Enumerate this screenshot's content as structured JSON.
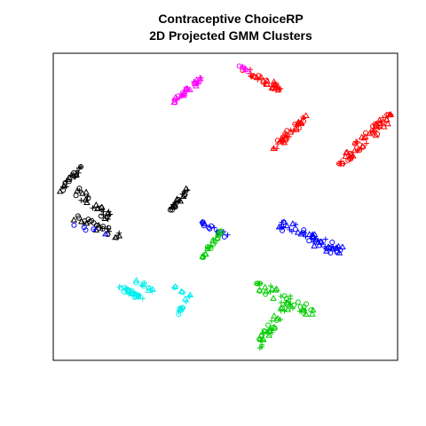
{
  "chart_data": {
    "type": "scatter",
    "title_line1": "Contraceptive ChoiceRP",
    "title_line2": "2D Projected GMM Clusters",
    "xlabel": "",
    "ylabel": "",
    "xlim": [
      0,
      100
    ],
    "ylim": [
      0,
      100
    ],
    "axes_visible": false,
    "grid": false,
    "marker_shapes": [
      "circle",
      "triangle",
      "plus"
    ],
    "series": [
      {
        "color": "#ff0000",
        "clusters": [
          {
            "x": [
              55,
              66
            ],
            "y": [
              88,
              95
            ],
            "n": 32
          },
          {
            "x": [
              64,
              74
            ],
            "y": [
              69,
              80
            ],
            "n": 40
          },
          {
            "x": [
              83,
              98
            ],
            "y": [
              64,
              80
            ],
            "n": 70
          }
        ]
      },
      {
        "color": "#ff00ff",
        "clusters": [
          {
            "x": [
              35,
              43
            ],
            "y": [
              84,
              92
            ],
            "n": 30
          },
          {
            "x": [
              54,
              57
            ],
            "y": [
              94,
              96
            ],
            "n": 6
          }
        ]
      },
      {
        "color": "#000000",
        "clusters": [
          {
            "x": [
              2,
              8
            ],
            "y": [
              55,
              63
            ],
            "n": 22
          },
          {
            "x": [
              6,
              17
            ],
            "y": [
              46,
              56
            ],
            "n": 30
          },
          {
            "x": [
              6,
              20
            ],
            "y": [
              40,
              47
            ],
            "n": 26
          },
          {
            "x": [
              34,
              40
            ],
            "y": [
              49,
              57
            ],
            "n": 22
          }
        ]
      },
      {
        "color": "#0000ff",
        "clusters": [
          {
            "x": [
              43,
              51
            ],
            "y": [
              40,
              45
            ],
            "n": 16
          },
          {
            "x": [
              65,
              84
            ],
            "y": [
              35,
              45
            ],
            "n": 55
          },
          {
            "x": [
              6,
              16
            ],
            "y": [
              41,
              44
            ],
            "n": 6
          }
        ]
      },
      {
        "color": "#00cc00",
        "clusters": [
          {
            "x": [
              43,
              49
            ],
            "y": [
              33,
              42
            ],
            "n": 24
          },
          {
            "x": [
              59,
              76
            ],
            "y": [
              15,
              25
            ],
            "n": 40
          },
          {
            "x": [
              59,
              69
            ],
            "y": [
              4,
              20
            ],
            "n": 40
          }
        ]
      },
      {
        "color": "#00eeee",
        "clusters": [
          {
            "x": [
              19,
              26
            ],
            "y": [
              20,
              24
            ],
            "n": 28
          },
          {
            "x": [
              24,
              30
            ],
            "y": [
              22,
              26
            ],
            "n": 12
          },
          {
            "x": [
              36,
              40
            ],
            "y": [
              15,
              22
            ],
            "n": 14
          },
          {
            "x": [
              35,
              38
            ],
            "y": [
              22,
              24
            ],
            "n": 5
          }
        ]
      }
    ]
  }
}
